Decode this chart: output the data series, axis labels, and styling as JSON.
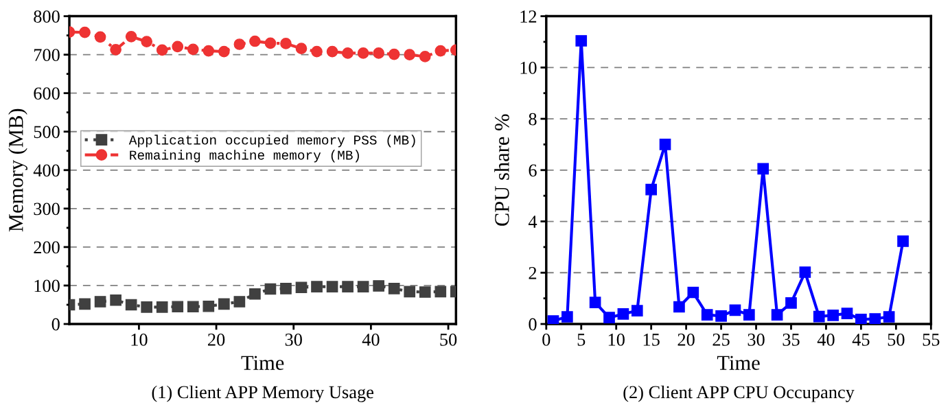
{
  "chart_data": [
    {
      "type": "line",
      "title": "(1) Client APP Memory Usage",
      "xlabel": "Time",
      "ylabel": "Memory (MB)",
      "x": [
        1,
        3,
        5,
        7,
        9,
        11,
        13,
        15,
        17,
        19,
        21,
        23,
        25,
        27,
        29,
        31,
        33,
        35,
        37,
        39,
        41,
        43,
        45,
        47,
        49,
        51
      ],
      "series": [
        {
          "name": "Application occupied memory PSS (MB)",
          "color": "#404040",
          "marker": "square",
          "line_style": "dotted",
          "values": [
            50,
            52,
            58,
            62,
            50,
            44,
            44,
            45,
            45,
            46,
            52,
            58,
            78,
            91,
            92,
            95,
            97,
            97,
            97,
            97,
            99,
            92,
            84,
            83,
            84,
            84
          ]
        },
        {
          "name": "Remaining machine memory (MB)",
          "color": "#ee3333",
          "marker": "circle",
          "line_style": "dashed",
          "values": [
            759,
            758,
            746,
            713,
            747,
            734,
            712,
            721,
            714,
            710,
            708,
            727,
            735,
            730,
            729,
            716,
            708,
            708,
            704,
            704,
            704,
            701,
            700,
            695,
            710,
            712
          ]
        }
      ],
      "xlim": [
        1,
        51
      ],
      "xticks": [
        10,
        20,
        30,
        40,
        50
      ],
      "ylim": [
        0,
        800
      ],
      "yticks": [
        0,
        100,
        200,
        300,
        400,
        500,
        600,
        700,
        800
      ],
      "grid": "y",
      "legend": "center"
    },
    {
      "type": "line",
      "title": "(2) Client APP CPU Occupancy",
      "xlabel": "Time",
      "ylabel": "CPU share %",
      "x": [
        1,
        3,
        5,
        7,
        9,
        11,
        13,
        15,
        17,
        19,
        21,
        23,
        25,
        27,
        29,
        31,
        33,
        35,
        37,
        39,
        41,
        43,
        45,
        47,
        49,
        51
      ],
      "series": [
        {
          "color": "#0000ff",
          "marker": "square",
          "line_style": "solid",
          "values": [
            0.12,
            0.28,
            11.04,
            0.84,
            0.25,
            0.39,
            0.52,
            5.24,
            7.0,
            0.67,
            1.23,
            0.36,
            0.31,
            0.54,
            0.36,
            6.05,
            0.36,
            0.82,
            2.02,
            0.29,
            0.34,
            0.41,
            0.18,
            0.2,
            0.28,
            3.23
          ]
        }
      ],
      "xlim": [
        0,
        55
      ],
      "xticks": [
        0,
        5,
        10,
        15,
        20,
        25,
        30,
        35,
        40,
        45,
        50,
        55
      ],
      "ylim": [
        0,
        12
      ],
      "yticks": [
        0,
        2,
        4,
        6,
        8,
        10,
        12
      ],
      "grid": "y",
      "legend": false
    }
  ]
}
